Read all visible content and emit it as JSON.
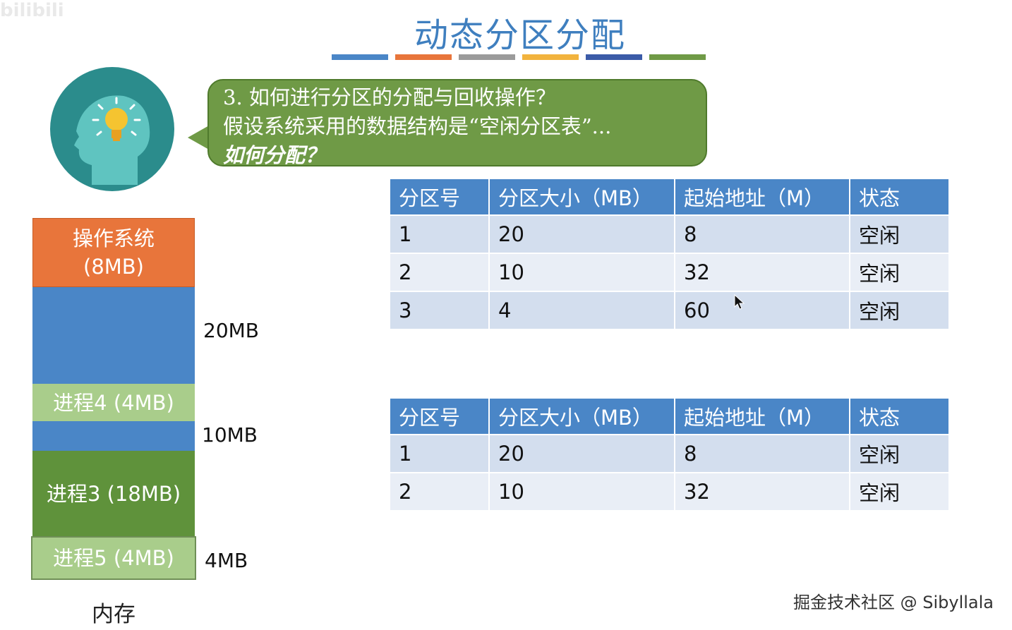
{
  "watermark_top": "bilibili",
  "watermark_bottom": "掘金技术社区 @ Sibyllala",
  "title": "动态分区分配",
  "stripe_colors": [
    "#4a86c7",
    "#e8753b",
    "#9b9b9b",
    "#f2b33d",
    "#3b5ba8",
    "#6f9a46"
  ],
  "bubble": {
    "line1": "3. 如何进行分区的分配与回收操作？",
    "line2": "假设系统采用的数据结构是“空闲分区表”...",
    "line3": "如何分配？"
  },
  "memory": {
    "os_name": "操作系统",
    "os_size": "(8MB)",
    "p4": "进程4 (4MB)",
    "p3": "进程3 (18MB)",
    "p5": "进程5 (4MB)",
    "free1_size": "20MB",
    "free2_size": "10MB",
    "free3_size": "4MB",
    "caption": "内存"
  },
  "table_headers": [
    "分区号",
    "分区大小（MB）",
    "起始地址（M）",
    "状态"
  ],
  "table1": {
    "rows": [
      [
        "1",
        "20",
        "8",
        "空闲"
      ],
      [
        "2",
        "10",
        "32",
        "空闲"
      ],
      [
        "3",
        "4",
        "60",
        "空闲"
      ]
    ]
  },
  "table2": {
    "rows": [
      [
        "1",
        "20",
        "8",
        "空闲"
      ],
      [
        "2",
        "10",
        "32",
        "空闲"
      ]
    ]
  }
}
